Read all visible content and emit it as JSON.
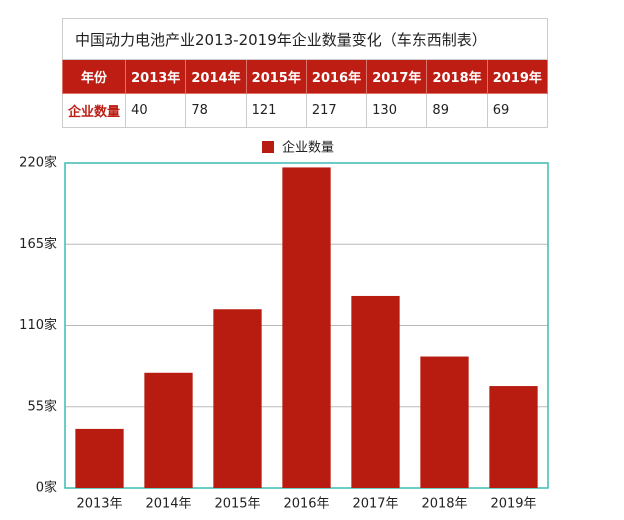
{
  "table": {
    "title": "中国动力电池产业2013-2019年企业数量变化（车东西制表）",
    "header": [
      "年份",
      "2013年",
      "2014年",
      "2015年",
      "2016年",
      "2017年",
      "2018年",
      "2019年"
    ],
    "rows": [
      [
        "企业数量",
        40,
        78,
        121,
        217,
        130,
        89,
        69
      ]
    ]
  },
  "chart_data": {
    "type": "bar",
    "categories": [
      "2013年",
      "2014年",
      "2015年",
      "2016年",
      "2017年",
      "2018年",
      "2019年"
    ],
    "series": [
      {
        "name": "企业数量",
        "color": "#b81c10",
        "values": [
          40,
          78,
          121,
          217,
          130,
          89,
          69
        ]
      }
    ],
    "ylim": [
      0,
      220
    ],
    "yticks": [
      {
        "value": 0,
        "label": "0家"
      },
      {
        "value": 55,
        "label": "55家"
      },
      {
        "value": 110,
        "label": "110家"
      },
      {
        "value": 165,
        "label": "165家"
      },
      {
        "value": 220,
        "label": "220家"
      }
    ],
    "grid": true
  }
}
